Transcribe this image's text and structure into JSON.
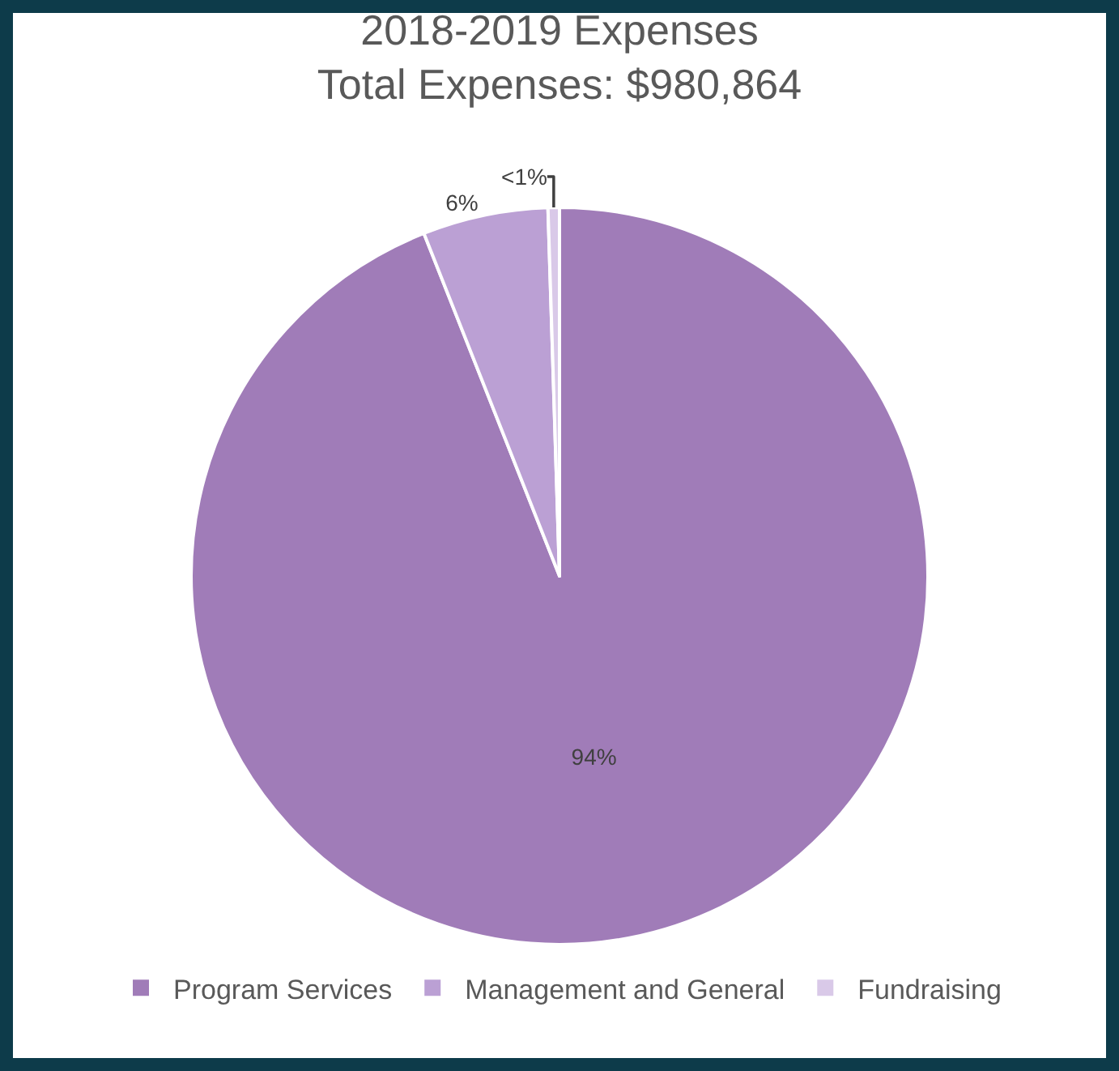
{
  "chart_data": {
    "type": "pie",
    "title": "2018-2019 Expenses",
    "subtitle": "Total Expenses: $980,864",
    "categories": [
      "Program Services",
      "Management and General",
      "Fundraising"
    ],
    "values": [
      94,
      5.5,
      0.5
    ],
    "value_labels": [
      "94%",
      "6%",
      "<1%"
    ],
    "colors": [
      "#a07cb8",
      "#bba0d4",
      "#d9c9e8"
    ],
    "legend": "bottom"
  }
}
